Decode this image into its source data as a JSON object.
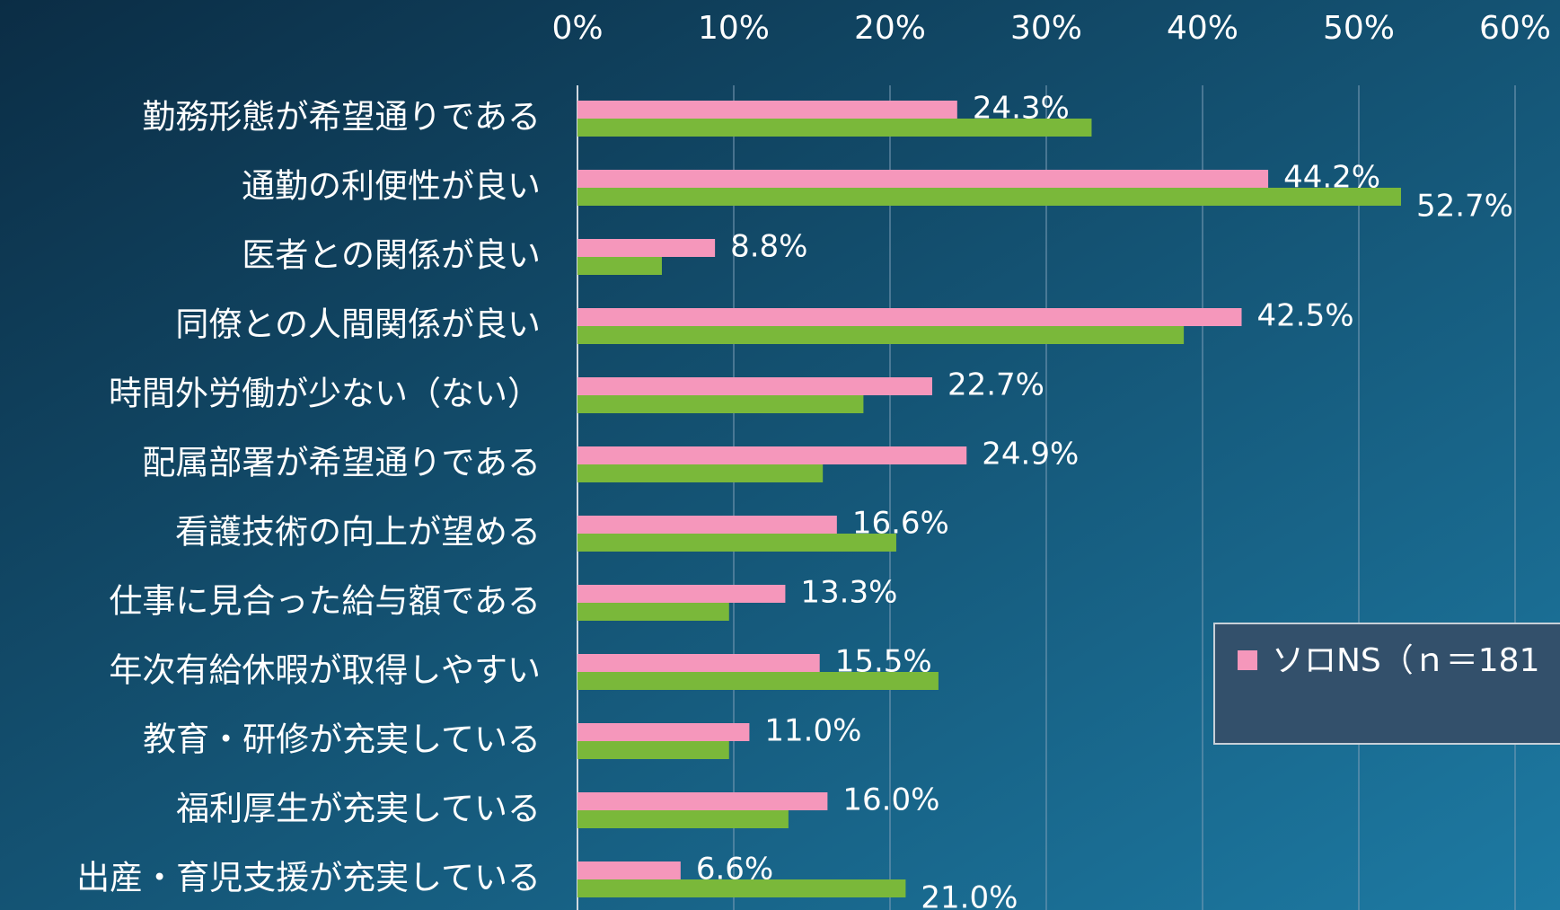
{
  "chart_data": {
    "type": "bar",
    "orientation": "horizontal",
    "categories": [
      "勤務形態が希望通りである",
      "通勤の利便性が良い",
      "医者との関係が良い",
      "同僚との人間関係が良い",
      "時間外労働が少ない（ない）",
      "配属部署が希望通りである",
      "看護技術の向上が望める",
      "仕事に見合った給与額である",
      "年次有給休暇が取得しやすい",
      "教育・研修が充実している",
      "福利厚生が充実している",
      "出産・育児支援が充実している"
    ],
    "series": [
      {
        "name": "ソロNS（ｎ＝181",
        "color": "#f597bb",
        "values": [
          24.3,
          44.2,
          8.8,
          42.5,
          22.7,
          24.9,
          16.6,
          13.3,
          15.5,
          11.0,
          16.0,
          6.6
        ],
        "value_labels": [
          "24.3%",
          "44.2%",
          "8.8%",
          "42.5%",
          "22.7%",
          "24.9%",
          "16.6%",
          "13.3%",
          "15.5%",
          "11.0%",
          "16.0%",
          "6.6%"
        ]
      },
      {
        "color": "#7ab83a",
        "values": [
          32.9,
          52.7,
          5.4,
          38.8,
          18.3,
          15.7,
          20.4,
          9.7,
          23.1,
          9.7,
          13.5,
          21.0
        ],
        "value_labels": [
          null,
          "52.7%",
          null,
          null,
          null,
          null,
          null,
          null,
          null,
          null,
          null,
          "21.0%"
        ]
      }
    ],
    "xlim": [
      0,
      60
    ],
    "xticks": [
      {
        "value": 0,
        "label": "0%"
      },
      {
        "value": 10,
        "label": "10%"
      },
      {
        "value": 20,
        "label": "20%"
      },
      {
        "value": 30,
        "label": "30%"
      },
      {
        "value": 40,
        "label": "40%"
      },
      {
        "value": 50,
        "label": "50%"
      },
      {
        "value": 60,
        "label": "60%"
      }
    ],
    "grid": true
  }
}
